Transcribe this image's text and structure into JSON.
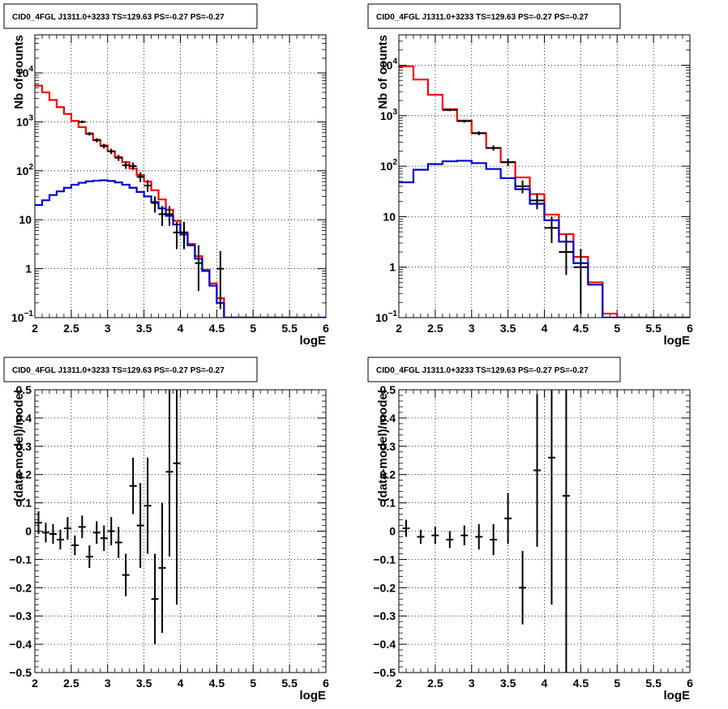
{
  "chart_data": [
    {
      "type": "line",
      "title": "CID0_4FGL J1311.0+3233 TS=129.63 PS=-0.27 PS=-0.27",
      "xlabel": "logE",
      "ylabel": "Nb of counts",
      "xlim": [
        2,
        6
      ],
      "ylim": [
        0.1,
        60000
      ],
      "yscale": "log",
      "grid": true,
      "xticks": [
        "2",
        "2.5",
        "3",
        "3.5",
        "4",
        "4.5",
        "5",
        "5.5",
        "6"
      ],
      "yticks": [
        {
          "v": 0.1,
          "t": "10",
          "e": "−1"
        },
        {
          "v": 1,
          "t": "1"
        },
        {
          "v": 10,
          "t": "10"
        },
        {
          "v": 100,
          "t": "10",
          "e": "2"
        },
        {
          "v": 1000,
          "t": "10",
          "e": "3"
        },
        {
          "v": 10000,
          "t": "10",
          "e": "4"
        }
      ],
      "bin_edges": [
        2.0,
        2.1,
        2.2,
        2.3,
        2.4,
        2.5,
        2.6,
        2.7,
        2.8,
        2.9,
        3.0,
        3.1,
        3.2,
        3.3,
        3.4,
        3.5,
        3.6,
        3.7,
        3.8,
        3.9,
        4.0,
        4.1,
        4.2,
        4.3,
        4.4,
        4.5,
        4.6,
        4.7,
        4.8,
        4.9,
        5.0,
        5.1,
        5.2,
        5.3,
        5.4,
        5.5,
        5.6,
        5.7,
        5.8,
        5.9,
        6.0
      ],
      "series": [
        {
          "color": "#ff0000",
          "values": [
            5500,
            4000,
            2800,
            2000,
            1450,
            1050,
            780,
            580,
            430,
            330,
            250,
            190,
            150,
            112,
            82,
            60,
            40,
            26,
            16,
            9.5,
            5.5,
            3.2,
            1.8,
            0.95,
            0.5,
            0.25,
            0.1,
            0.1,
            0.1,
            0.1,
            0.1,
            0.1,
            0.1,
            0.1,
            0.1,
            0.1,
            0.1,
            0.1,
            0.1,
            0.1
          ]
        },
        {
          "color": "#0000cc",
          "values": [
            20,
            25,
            32,
            38,
            45,
            52,
            57,
            61,
            63,
            64,
            62,
            58,
            52,
            45,
            37,
            30,
            23,
            17,
            12,
            8,
            5,
            3,
            1.6,
            0.9,
            0.45,
            0.2,
            0.1,
            0.1,
            0.1,
            0.1,
            0.1,
            0.1,
            0.1,
            0.1,
            0.1,
            0.1,
            0.1,
            0.1,
            0.1,
            0.1
          ]
        }
      ],
      "points": [
        {
          "x": 2.65,
          "y": 1000,
          "lo": 940,
          "hi": 1065
        },
        {
          "x": 2.75,
          "y": 570,
          "lo": 523,
          "hi": 620
        },
        {
          "x": 2.85,
          "y": 420,
          "lo": 380,
          "hi": 462
        },
        {
          "x": 2.95,
          "y": 320,
          "lo": 285,
          "hi": 357
        },
        {
          "x": 3.05,
          "y": 250,
          "lo": 219,
          "hi": 283
        },
        {
          "x": 3.15,
          "y": 185,
          "lo": 159,
          "hi": 213
        },
        {
          "x": 3.25,
          "y": 130,
          "lo": 109,
          "hi": 153
        },
        {
          "x": 3.35,
          "y": 125,
          "lo": 104,
          "hi": 148
        },
        {
          "x": 3.45,
          "y": 75,
          "lo": 59,
          "hi": 93
        },
        {
          "x": 3.55,
          "y": 50,
          "lo": 37,
          "hi": 65
        },
        {
          "x": 3.65,
          "y": 22,
          "lo": 14,
          "hi": 30
        },
        {
          "x": 3.75,
          "y": 13,
          "lo": 7.5,
          "hi": 19
        },
        {
          "x": 3.85,
          "y": 13,
          "lo": 7.5,
          "hi": 19
        },
        {
          "x": 3.95,
          "y": 5.5,
          "lo": 2.5,
          "hi": 9
        },
        {
          "x": 4.05,
          "y": 5.5,
          "lo": 2.5,
          "hi": 9
        },
        {
          "x": 4.25,
          "y": 1.3,
          "lo": 0.35,
          "hi": 3
        },
        {
          "x": 4.55,
          "y": 1.0,
          "lo": 0.15,
          "hi": 2.3
        }
      ]
    },
    {
      "type": "line",
      "title": "CID0_4FGL J1311.0+3233 TS=129.63 PS=-0.27 PS=-0.27",
      "xlabel": "logE",
      "ylabel": "Nb of counts",
      "xlim": [
        2,
        6
      ],
      "ylim": [
        0.1,
        40000
      ],
      "yscale": "log",
      "grid": true,
      "xticks": [
        "2",
        "2.5",
        "3",
        "3.5",
        "4",
        "4.5",
        "5",
        "5.5",
        "6"
      ],
      "yticks": [
        {
          "v": 0.1,
          "t": "10",
          "e": "−1"
        },
        {
          "v": 1,
          "t": "1"
        },
        {
          "v": 10,
          "t": "10"
        },
        {
          "v": 100,
          "t": "10",
          "e": "2"
        },
        {
          "v": 1000,
          "t": "10",
          "e": "3"
        },
        {
          "v": 10000,
          "t": "10",
          "e": "4"
        }
      ],
      "bin_edges": [
        2.0,
        2.2,
        2.4,
        2.6,
        2.8,
        3.0,
        3.2,
        3.4,
        3.6,
        3.8,
        4.0,
        4.2,
        4.4,
        4.6,
        4.8,
        5.0,
        5.2,
        5.4,
        5.6,
        5.8,
        6.0
      ],
      "series": [
        {
          "color": "#ff0000",
          "values": [
            9500,
            5200,
            2600,
            1350,
            800,
            450,
            230,
            120,
            60,
            28,
            11,
            4.5,
            1.6,
            0.5,
            0.12,
            0.1,
            0.1,
            0.1,
            0.1,
            0.1
          ]
        },
        {
          "color": "#0000cc",
          "values": [
            48,
            85,
            110,
            125,
            128,
            115,
            88,
            58,
            35,
            18,
            8.5,
            3.2,
            1.2,
            0.45,
            0.1,
            0.1,
            0.1,
            0.1,
            0.1,
            0.1
          ]
        }
      ],
      "points": [
        {
          "x": 2.7,
          "y": 1300,
          "lo": 1230,
          "hi": 1372
        },
        {
          "x": 2.9,
          "y": 780,
          "lo": 733,
          "hi": 828
        },
        {
          "x": 3.1,
          "y": 450,
          "lo": 411,
          "hi": 490
        },
        {
          "x": 3.3,
          "y": 230,
          "lo": 202,
          "hi": 259
        },
        {
          "x": 3.5,
          "y": 120,
          "lo": 100,
          "hi": 141
        },
        {
          "x": 3.7,
          "y": 40,
          "lo": 29,
          "hi": 52
        },
        {
          "x": 3.9,
          "y": 21,
          "lo": 14,
          "hi": 29
        },
        {
          "x": 4.1,
          "y": 6,
          "lo": 3,
          "hi": 10
        },
        {
          "x": 4.3,
          "y": 2,
          "lo": 0.7,
          "hi": 4.5
        },
        {
          "x": 4.5,
          "y": 1,
          "lo": 0.12,
          "hi": 2.3
        }
      ]
    },
    {
      "type": "scatter",
      "title": "CID0_4FGL J1311.0+3233 TS=129.63 PS=-0.27 PS=-0.27",
      "xlabel": "logE",
      "ylabel": "(data-model)/model",
      "xlim": [
        2,
        6
      ],
      "ylim": [
        -0.5,
        0.5
      ],
      "grid": true,
      "xticks": [
        "2",
        "2.5",
        "3",
        "3.5",
        "4",
        "4.5",
        "5",
        "5.5",
        "6"
      ],
      "yticks": [
        "−0.5",
        "−0.4",
        "−0.3",
        "−0.2",
        "−0.1",
        "0",
        "0.1",
        "0.2",
        "0.3",
        "0.4",
        "0.5"
      ],
      "points": [
        {
          "x": 2.05,
          "y": 0.03,
          "err": 0.04
        },
        {
          "x": 2.15,
          "y": -0.005,
          "err": 0.035
        },
        {
          "x": 2.25,
          "y": -0.01,
          "err": 0.035
        },
        {
          "x": 2.35,
          "y": -0.03,
          "err": 0.035
        },
        {
          "x": 2.45,
          "y": 0.01,
          "err": 0.04
        },
        {
          "x": 2.55,
          "y": -0.05,
          "err": 0.035
        },
        {
          "x": 2.65,
          "y": 0.015,
          "err": 0.04
        },
        {
          "x": 2.75,
          "y": -0.09,
          "err": 0.04
        },
        {
          "x": 2.85,
          "y": -0.005,
          "err": 0.04
        },
        {
          "x": 2.95,
          "y": -0.025,
          "err": 0.045
        },
        {
          "x": 3.05,
          "y": 0.0,
          "err": 0.05
        },
        {
          "x": 3.15,
          "y": -0.04,
          "err": 0.055
        },
        {
          "x": 3.25,
          "y": -0.155,
          "err": 0.075
        },
        {
          "x": 3.35,
          "y": 0.16,
          "err": 0.1
        },
        {
          "x": 3.45,
          "y": 0.02,
          "err": 0.15
        },
        {
          "x": 3.55,
          "y": 0.09,
          "err": 0.17
        },
        {
          "x": 3.65,
          "y": -0.24,
          "err": 0.16
        },
        {
          "x": 3.75,
          "y": -0.13,
          "err": 0.23
        },
        {
          "x": 3.85,
          "y": 0.21,
          "err": 0.3
        },
        {
          "x": 3.95,
          "y": 0.24,
          "err": 0.5
        }
      ]
    },
    {
      "type": "scatter",
      "title": "CID0_4FGL J1311.0+3233 TS=129.63 PS=-0.27 PS=-0.27",
      "xlabel": "logE",
      "ylabel": "(data-model)/model",
      "xlim": [
        2,
        6
      ],
      "ylim": [
        -0.5,
        0.5
      ],
      "grid": true,
      "xticks": [
        "2",
        "2.5",
        "3",
        "3.5",
        "4",
        "4.5",
        "5",
        "5.5",
        "6"
      ],
      "yticks": [
        "−0.5",
        "−0.4",
        "−0.3",
        "−0.2",
        "−0.1",
        "0",
        "0.1",
        "0.2",
        "0.3",
        "0.4",
        "0.5"
      ],
      "points": [
        {
          "x": 2.1,
          "y": 0.01,
          "err": 0.03
        },
        {
          "x": 2.3,
          "y": -0.02,
          "err": 0.025
        },
        {
          "x": 2.5,
          "y": -0.015,
          "err": 0.03
        },
        {
          "x": 2.7,
          "y": -0.03,
          "err": 0.03
        },
        {
          "x": 2.9,
          "y": -0.015,
          "err": 0.035
        },
        {
          "x": 3.1,
          "y": -0.02,
          "err": 0.045
        },
        {
          "x": 3.3,
          "y": -0.03,
          "err": 0.055
        },
        {
          "x": 3.5,
          "y": 0.045,
          "err": 0.09
        },
        {
          "x": 3.7,
          "y": -0.2,
          "err": 0.13
        },
        {
          "x": 3.9,
          "y": 0.215,
          "err": 0.27
        },
        {
          "x": 4.1,
          "y": 0.26,
          "err": 0.52
        },
        {
          "x": 4.3,
          "y": 0.125,
          "err": 0.65
        }
      ]
    }
  ]
}
